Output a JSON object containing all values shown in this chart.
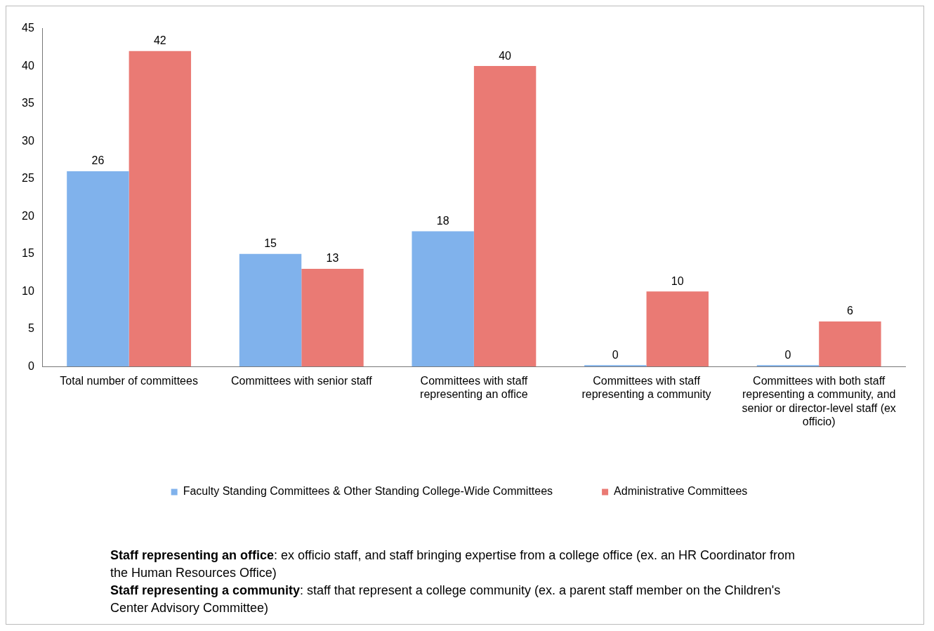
{
  "chart_data": {
    "type": "bar",
    "categories": [
      "Total number of committees",
      "Committees with senior staff",
      "Committees with staff representing an office",
      "Committees with staff representing a community",
      "Committees with both staff representing a community, and senior or director-level staff (ex officio)"
    ],
    "series": [
      {
        "name": "Faculty Standing Committees & Other Standing College-Wide Committees",
        "color": "#80b2ec",
        "values": [
          26,
          15,
          18,
          0,
          0
        ]
      },
      {
        "name": "Administrative Committees",
        "color": "#ea7a74",
        "values": [
          42,
          13,
          40,
          10,
          6
        ]
      }
    ],
    "ylim": [
      0,
      45
    ],
    "yticks": [
      0,
      5,
      10,
      15,
      20,
      25,
      30,
      35,
      40,
      45
    ],
    "grid": false,
    "legend": "bottom",
    "data_labels": true,
    "annotations": [
      "Staff representing an office: ex officio staff, and staff bringing expertise from a college office (ex. an HR Coordinator from the Human Resources Office)",
      "Staff representing a community: staff that represent a college community (ex. a parent staff member on the Children's Center Advisory Committee)"
    ]
  }
}
